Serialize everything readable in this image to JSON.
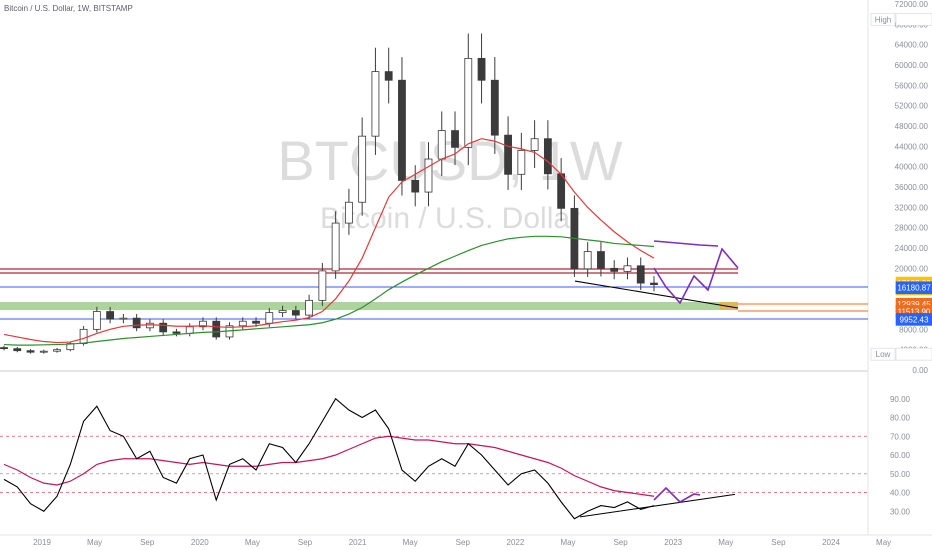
{
  "header": {
    "symbol_line": "Bitcoin / U.S. Dollar, 1W, BITSTAMP"
  },
  "watermark": {
    "ticker": "BTCUSD, 1W",
    "name": "Bitcoin / U.S. Dollar"
  },
  "colors": {
    "up_candle": "#3b3b3b",
    "down_candle": "#3b3b3b",
    "ma_fast": "#e03a3a",
    "ma_slow": "#2f8f2f",
    "projection": "#7b2fbe",
    "trendline": "#000000",
    "resistance": "#b2263a",
    "support_zone": "#6ab04c",
    "level_line": "#2962ff",
    "rsi": "#000000",
    "rsi_ma": "#c2185b"
  },
  "chart_data": [
    {
      "type": "candlestick",
      "title": "Bitcoin / U.S. Dollar, 1W, BITSTAMP",
      "y_scale": "linear",
      "ylim": [
        0,
        72000
      ],
      "y_ticks": [
        0,
        4000,
        8000,
        12000,
        16000,
        20000,
        24000,
        28000,
        32000,
        36000,
        40000,
        44000,
        48000,
        52000,
        56000,
        60000,
        64000,
        68000,
        72000
      ],
      "y_tick_labels": [
        "0.00",
        "4000.00",
        "8000.00",
        "12000.00",
        "16000.00",
        "20000.00",
        "24000.00",
        "28000.00",
        "32000.00",
        "36000.00",
        "40000.00",
        "44000.00",
        "48000.00",
        "52000.00",
        "56000.00",
        "60000.00",
        "64000.00",
        "68000.00",
        "72000.00"
      ],
      "x_tick_labels": [
        "2019",
        "May",
        "Sep",
        "2020",
        "May",
        "Sep",
        "2021",
        "May",
        "Sep",
        "2022",
        "May",
        "Sep",
        "2023",
        "May",
        "Sep",
        "2024",
        "May"
      ],
      "price_labels": [
        {
          "text": "High",
          "value": "69000.00",
          "color": "#ffffff",
          "text_color": "#131722"
        },
        {
          "text": "",
          "value": "17109.00",
          "sub": "3d 19h",
          "color": "#f7c600",
          "text_color": "#131722"
        },
        {
          "text": "",
          "value": "16180.87",
          "color": "#2962ff",
          "text_color": "#ffffff"
        },
        {
          "text": "",
          "value": "12939.45",
          "color": "#f26b1d",
          "text_color": "#ffffff"
        },
        {
          "text": "",
          "value": "11513.90",
          "color": "#f26b1d",
          "text_color": "#ffffff"
        },
        {
          "text": "",
          "value": "9952.43",
          "color": "#2962ff",
          "text_color": "#ffffff"
        },
        {
          "text": "Low",
          "value": "3122.28",
          "color": "#ffffff",
          "text_color": "#131722"
        }
      ],
      "horizontal_levels": [
        19900,
        19400,
        16180.87,
        11513.9,
        9952.43
      ],
      "support_zone": [
        12500,
        13600
      ],
      "series": [
        {
          "name": "weekly close",
          "x": [
            "2018-11",
            "2018-12",
            "2019-01",
            "2019-02",
            "2019-03",
            "2019-04",
            "2019-05",
            "2019-06",
            "2019-07",
            "2019-08",
            "2019-09",
            "2019-10",
            "2019-11",
            "2019-12",
            "2020-01",
            "2020-02",
            "2020-03",
            "2020-04",
            "2020-05",
            "2020-06",
            "2020-07",
            "2020-08",
            "2020-09",
            "2020-10",
            "2020-11",
            "2020-12",
            "2021-01",
            "2021-02",
            "2021-03",
            "2021-04",
            "2021-05",
            "2021-06",
            "2021-07",
            "2021-08",
            "2021-09",
            "2021-10",
            "2021-11",
            "2021-12",
            "2022-01",
            "2022-02",
            "2022-03",
            "2022-04",
            "2022-05",
            "2022-06",
            "2022-07",
            "2022-08",
            "2022-09",
            "2022-10",
            "2022-11",
            "2022-12"
          ],
          "values": [
            4200,
            3800,
            3500,
            3700,
            4000,
            5200,
            8000,
            11500,
            10000,
            10200,
            8300,
            9200,
            7500,
            7200,
            8500,
            9600,
            6500,
            8700,
            9600,
            9200,
            11300,
            11700,
            10800,
            13700,
            19500,
            28900,
            33000,
            46000,
            58700,
            57000,
            37300,
            35000,
            41500,
            47100,
            43800,
            61300,
            57000,
            46200,
            38500,
            43200,
            45500,
            38600,
            31800,
            19900,
            23300,
            20000,
            19400,
            20500,
            17100,
            16800
          ]
        },
        {
          "name": "ma fast",
          "values": [
            7000,
            6500,
            6000,
            5600,
            5400,
            5500,
            6200,
            7200,
            8000,
            8600,
            8800,
            8900,
            8800,
            8600,
            8600,
            8700,
            8500,
            8400,
            8500,
            8700,
            9100,
            9500,
            9800,
            10300,
            11500,
            14000,
            17500,
            22000,
            28000,
            34000,
            37000,
            38500,
            40000,
            41500,
            42500,
            44500,
            45500,
            45000,
            44000,
            43500,
            42800,
            41000,
            38500,
            35000,
            32000,
            29500,
            27200,
            25200,
            23500,
            22000
          ]
        },
        {
          "name": "ma slow",
          "values": [
            5000,
            4900,
            4900,
            4950,
            5000,
            5100,
            5300,
            5600,
            5900,
            6200,
            6400,
            6600,
            6800,
            7000,
            7200,
            7400,
            7500,
            7700,
            7900,
            8100,
            8300,
            8500,
            8700,
            8900,
            9300,
            10000,
            11000,
            12300,
            14000,
            15800,
            17300,
            18700,
            20000,
            21300,
            22400,
            23500,
            24500,
            25200,
            25800,
            26100,
            26300,
            26300,
            26200,
            25900,
            25600,
            25300,
            24900,
            24700,
            24500,
            24300
          ]
        }
      ]
    },
    {
      "type": "line",
      "title": "",
      "ylim": [
        20,
        100
      ],
      "y_ticks": [
        30,
        40,
        50,
        60,
        70,
        80,
        90
      ],
      "y_tick_labels": [
        "30.00",
        "40.00",
        "50.00",
        "60.00",
        "70.00",
        "80.00",
        "90.00"
      ],
      "levels": [
        70,
        50,
        40
      ],
      "series": [
        {
          "name": "rsi",
          "values": [
            47,
            43,
            34,
            30,
            38,
            55,
            78,
            86,
            73,
            70,
            58,
            62,
            48,
            45,
            58,
            60,
            36,
            55,
            58,
            52,
            66,
            64,
            56,
            66,
            78,
            90,
            84,
            80,
            84,
            74,
            52,
            46,
            54,
            58,
            54,
            66,
            60,
            52,
            44,
            50,
            52,
            45,
            35,
            26,
            30,
            33,
            32,
            35,
            31,
            33
          ]
        },
        {
          "name": "rsi ma",
          "values": [
            55,
            52,
            48,
            45,
            44,
            46,
            50,
            55,
            57,
            58,
            58,
            58,
            57,
            56,
            55,
            56,
            55,
            54,
            54,
            54,
            55,
            56,
            56,
            57,
            58,
            60,
            63,
            66,
            69,
            70,
            69,
            68,
            68,
            67,
            66,
            66,
            65,
            64,
            62,
            60,
            58,
            56,
            53,
            49,
            46,
            43,
            41,
            40,
            39,
            38
          ]
        }
      ]
    }
  ]
}
